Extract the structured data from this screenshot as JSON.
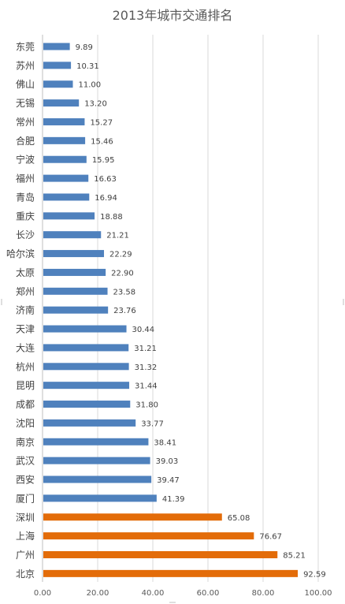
{
  "chart_data": {
    "type": "bar",
    "orientation": "horizontal",
    "title": "2013年城市交通排名",
    "categories": [
      "东莞",
      "苏州",
      "佛山",
      "无锡",
      "常州",
      "合肥",
      "宁波",
      "福州",
      "青岛",
      "重庆",
      "长沙",
      "哈尔滨",
      "太原",
      "郑州",
      "济南",
      "天津",
      "大连",
      "杭州",
      "昆明",
      "成都",
      "沈阳",
      "南京",
      "武汉",
      "西安",
      "厦门",
      "深圳",
      "上海",
      "广州",
      "北京"
    ],
    "values": [
      9.89,
      10.31,
      11.0,
      13.2,
      15.27,
      15.46,
      15.95,
      16.63,
      16.94,
      18.88,
      21.21,
      22.29,
      22.9,
      23.58,
      23.76,
      30.44,
      31.21,
      31.32,
      31.44,
      31.8,
      33.77,
      38.41,
      39.03,
      39.47,
      41.39,
      65.08,
      76.67,
      85.21,
      92.59
    ],
    "value_labels": [
      "9.89",
      "10.31",
      "11.00",
      "13.20",
      "15.27",
      "15.46",
      "15.95",
      "16.63",
      "16.94",
      "18.88",
      "21.21",
      "22.29",
      "22.90",
      "23.58",
      "23.76",
      "30.44",
      "31.21",
      "31.32",
      "31.44",
      "31.80",
      "33.77",
      "38.41",
      "39.03",
      "39.47",
      "41.39",
      "65.08",
      "76.67",
      "85.21",
      "92.59"
    ],
    "highlight_from_index": 25,
    "colors": {
      "normal": "#4f81bd",
      "highlight": "#e36c09"
    },
    "xlim": [
      0,
      100
    ],
    "x_ticks": [
      0,
      20,
      40,
      60,
      80,
      100
    ],
    "x_tick_labels": [
      "0.00",
      "20.00",
      "40.00",
      "60.00",
      "80.00",
      "100.00"
    ],
    "xlabel": "",
    "ylabel": "",
    "grid": true,
    "legend": "none"
  }
}
